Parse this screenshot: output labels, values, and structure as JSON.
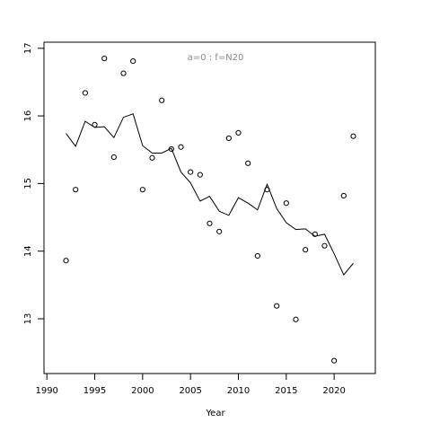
{
  "chart_data": {
    "type": "scatter",
    "annotation": "a=0  :  f=N20",
    "x_label": "Year",
    "x": [
      1992,
      1993,
      1994,
      1995,
      1996,
      1997,
      1998,
      1999,
      2000,
      2001,
      2002,
      2003,
      2004,
      2005,
      2006,
      2007,
      2008,
      2009,
      2010,
      2011,
      2012,
      2013,
      2014,
      2015,
      2016,
      2017,
      2018,
      2019,
      2020,
      2021,
      2022
    ],
    "series": [
      {
        "style": "points",
        "color": "#000000",
        "values": [
          13.86,
          14.91,
          16.34,
          15.87,
          16.85,
          15.39,
          16.63,
          16.81,
          14.91,
          15.38,
          16.23,
          15.51,
          15.54,
          15.17,
          15.13,
          14.41,
          14.29,
          15.67,
          15.75,
          15.3,
          13.93,
          14.91,
          13.19,
          14.71,
          12.99,
          14.02,
          14.25,
          14.08,
          12.38,
          14.82,
          15.7
        ]
      },
      {
        "style": "line",
        "color": "#000000",
        "values": [
          15.74,
          15.55,
          15.92,
          15.83,
          15.84,
          15.68,
          15.98,
          16.03,
          15.56,
          15.45,
          15.45,
          15.52,
          15.17,
          15.01,
          14.74,
          14.81,
          14.59,
          14.53,
          14.79,
          14.71,
          14.61,
          14.99,
          14.63,
          14.42,
          14.32,
          14.33,
          14.22,
          14.25,
          13.96,
          13.65,
          13.82
        ]
      }
    ],
    "xlim": [
      1989.7,
      2024.3
    ],
    "xticks": [
      1990,
      1995,
      2000,
      2005,
      2010,
      2015,
      2020
    ],
    "ylim": [
      12.19,
      17.09
    ],
    "yticks": [
      13,
      14,
      15,
      16,
      17
    ]
  }
}
